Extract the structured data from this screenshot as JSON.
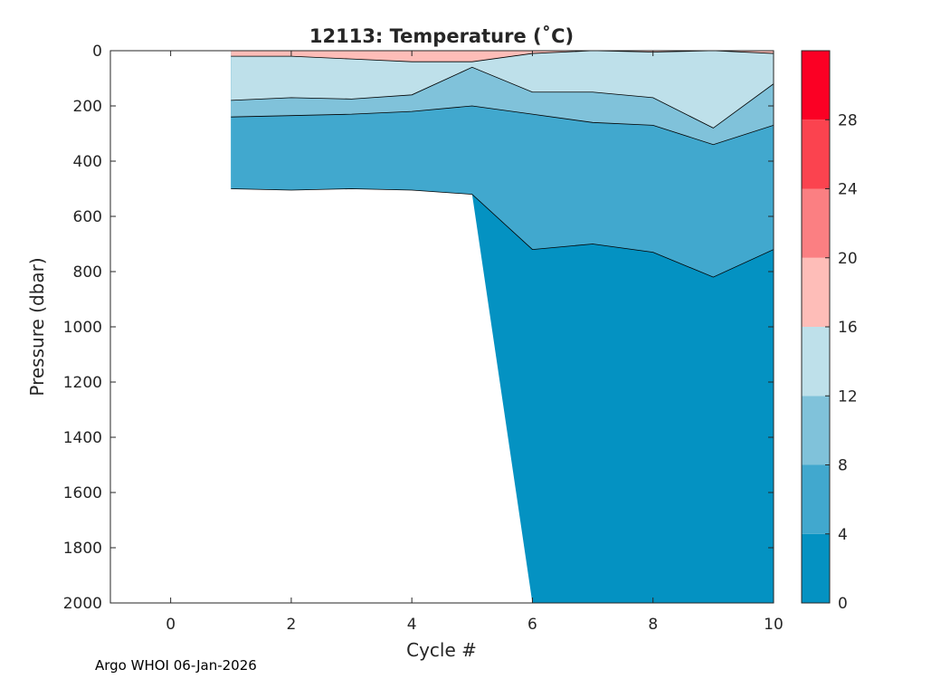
{
  "footer": "Argo WHOI 06-Jan-2026",
  "chart_data": {
    "type": "heatmap",
    "title": "12113:  Temperature (˚C)",
    "xlabel": "Cycle #",
    "ylabel": "Pressure (dbar)",
    "xlim": [
      -1,
      10
    ],
    "ylim": [
      0,
      2000
    ],
    "y_reversed": true,
    "xticks": [
      0,
      2,
      4,
      6,
      8,
      10
    ],
    "yticks": [
      0,
      200,
      400,
      600,
      800,
      1000,
      1200,
      1400,
      1600,
      1800,
      2000
    ],
    "colorbar": {
      "range": [
        0,
        32
      ],
      "ticks": [
        0,
        4,
        8,
        12,
        16,
        20,
        24,
        28
      ],
      "levels": [
        {
          "min": 0,
          "max": 4,
          "color": "#0492c2"
        },
        {
          "min": 4,
          "max": 8,
          "color": "#41a8ce"
        },
        {
          "min": 8,
          "max": 12,
          "color": "#80c2da"
        },
        {
          "min": 12,
          "max": 16,
          "color": "#bee0ea"
        },
        {
          "min": 16,
          "max": 20,
          "color": "#febdb8"
        },
        {
          "min": 20,
          "max": 24,
          "color": "#fb7f82"
        },
        {
          "min": 24,
          "max": 28,
          "color": "#fb434f"
        },
        {
          "min": 28,
          "max": 32,
          "color": "#fb0024"
        }
      ]
    },
    "cycles": [
      1,
      2,
      3,
      4,
      5,
      6,
      7,
      8,
      9,
      10
    ],
    "profile_max_pressure": [
      500,
      505,
      500,
      505,
      520,
      2000,
      2000,
      2000,
      2000,
      2000
    ],
    "isotherm_depths": {
      "levels_C": [
        16,
        12,
        8,
        4
      ],
      "by_cycle": [
        [
          20,
          180,
          240,
          500
        ],
        [
          20,
          170,
          235,
          505
        ],
        [
          30,
          175,
          230,
          500
        ],
        [
          40,
          160,
          220,
          505
        ],
        [
          40,
          60,
          200,
          520
        ],
        [
          10,
          150,
          230,
          720
        ],
        [
          0,
          150,
          260,
          700
        ],
        [
          5,
          170,
          270,
          730
        ],
        [
          0,
          280,
          340,
          820
        ],
        [
          10,
          120,
          270,
          720
        ]
      ]
    }
  }
}
